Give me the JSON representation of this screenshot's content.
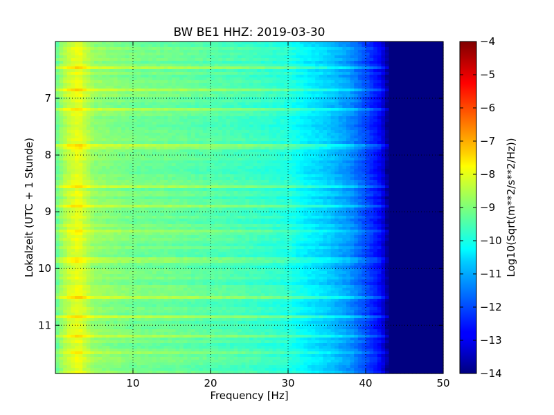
{
  "chart_data": {
    "type": "heatmap",
    "title": "BW BE1 HHZ: 2019-03-30",
    "xlabel": "Frequency [Hz]",
    "ylabel": "Lokalzeit (UTC + 1 Stunde)",
    "xlim": [
      0,
      50
    ],
    "ylim": [
      11.85,
      6.0
    ],
    "x_ticks": [
      10,
      20,
      30,
      40,
      50
    ],
    "y_ticks": [
      7,
      8,
      9,
      10,
      11
    ],
    "grid": true,
    "colormap": "jet",
    "colorbar": {
      "label": "Log10(Sqrt(m**2/s**2/Hz))",
      "range": [
        -14,
        -4
      ],
      "ticks": [
        -4,
        -5,
        -6,
        -7,
        -8,
        -9,
        -10,
        -11,
        -12,
        -13,
        -14
      ]
    },
    "frequency_profile": {
      "x": [
        0,
        1,
        2,
        3,
        4,
        5,
        10,
        15,
        20,
        25,
        30,
        32,
        35,
        38,
        40,
        42,
        43,
        50
      ],
      "values": [
        -9.3,
        -8.6,
        -8.2,
        -7.9,
        -8.4,
        -8.8,
        -9.1,
        -9.2,
        -9.4,
        -9.6,
        -9.9,
        -10.3,
        -10.7,
        -11.3,
        -12.0,
        -12.8,
        -14.0,
        -14.0
      ]
    },
    "high_noise_hours": [
      6.45,
      6.85,
      7.2,
      7.85,
      8.55,
      8.9,
      9.35,
      9.85,
      10.5,
      10.85,
      11.2,
      11.5
    ]
  }
}
